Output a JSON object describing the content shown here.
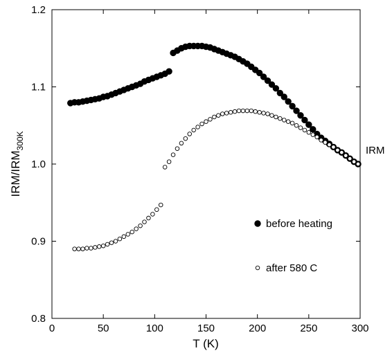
{
  "chart_data": {
    "type": "scatter",
    "title": "",
    "xlabel": "T (K)",
    "ylabel": {
      "main": "IRM/IRM",
      "sub": "300K"
    },
    "xlim": [
      0,
      300
    ],
    "ylim": [
      0.8,
      1.2
    ],
    "xticks": [
      0,
      50,
      100,
      150,
      200,
      250,
      300
    ],
    "yticks": [
      0.8,
      0.9,
      1.0,
      1.1,
      1.2
    ],
    "xtick_labels": [
      "0",
      "50",
      "100",
      "150",
      "200",
      "250",
      "300"
    ],
    "ytick_labels": [
      "0.8",
      "0.9",
      "1.0",
      "1.1",
      "1.2"
    ],
    "grid": false,
    "annotation": "IRM",
    "series": [
      {
        "name": "before heating",
        "marker": "filled-circle",
        "color": "#000000",
        "points": [
          [
            18,
            1.079
          ],
          [
            22,
            1.08
          ],
          [
            26,
            1.08
          ],
          [
            30,
            1.081
          ],
          [
            34,
            1.082
          ],
          [
            38,
            1.083
          ],
          [
            42,
            1.084
          ],
          [
            46,
            1.085
          ],
          [
            50,
            1.087
          ],
          [
            54,
            1.088
          ],
          [
            58,
            1.09
          ],
          [
            62,
            1.092
          ],
          [
            66,
            1.094
          ],
          [
            70,
            1.096
          ],
          [
            74,
            1.098
          ],
          [
            78,
            1.1
          ],
          [
            82,
            1.102
          ],
          [
            86,
            1.104
          ],
          [
            90,
            1.107
          ],
          [
            94,
            1.109
          ],
          [
            98,
            1.111
          ],
          [
            102,
            1.113
          ],
          [
            106,
            1.115
          ],
          [
            110,
            1.117
          ],
          [
            114,
            1.12
          ],
          [
            118,
            1.144
          ],
          [
            122,
            1.147
          ],
          [
            126,
            1.15
          ],
          [
            130,
            1.152
          ],
          [
            134,
            1.153
          ],
          [
            138,
            1.153
          ],
          [
            142,
            1.153
          ],
          [
            146,
            1.153
          ],
          [
            150,
            1.152
          ],
          [
            154,
            1.151
          ],
          [
            158,
            1.149
          ],
          [
            162,
            1.147
          ],
          [
            166,
            1.145
          ],
          [
            170,
            1.143
          ],
          [
            174,
            1.141
          ],
          [
            178,
            1.139
          ],
          [
            182,
            1.136
          ],
          [
            186,
            1.133
          ],
          [
            190,
            1.13
          ],
          [
            194,
            1.126
          ],
          [
            198,
            1.122
          ],
          [
            202,
            1.118
          ],
          [
            206,
            1.113
          ],
          [
            210,
            1.108
          ],
          [
            214,
            1.103
          ],
          [
            218,
            1.098
          ],
          [
            222,
            1.092
          ],
          [
            226,
            1.087
          ],
          [
            230,
            1.081
          ],
          [
            234,
            1.075
          ],
          [
            238,
            1.069
          ],
          [
            242,
            1.063
          ],
          [
            246,
            1.057
          ],
          [
            250,
            1.051
          ],
          [
            254,
            1.045
          ],
          [
            258,
            1.039
          ],
          [
            262,
            1.034
          ],
          [
            266,
            1.03
          ],
          [
            270,
            1.026
          ],
          [
            274,
            1.022
          ],
          [
            278,
            1.018
          ],
          [
            282,
            1.015
          ],
          [
            286,
            1.011
          ],
          [
            290,
            1.007
          ],
          [
            294,
            1.003
          ],
          [
            298,
            1.0
          ]
        ]
      },
      {
        "name": "after 580 C",
        "marker": "open-circle",
        "color": "#000000",
        "points": [
          [
            22,
            0.89
          ],
          [
            26,
            0.89
          ],
          [
            30,
            0.89
          ],
          [
            34,
            0.891
          ],
          [
            38,
            0.891
          ],
          [
            42,
            0.892
          ],
          [
            46,
            0.893
          ],
          [
            50,
            0.894
          ],
          [
            54,
            0.896
          ],
          [
            58,
            0.898
          ],
          [
            62,
            0.9
          ],
          [
            66,
            0.903
          ],
          [
            70,
            0.906
          ],
          [
            74,
            0.909
          ],
          [
            78,
            0.912
          ],
          [
            82,
            0.916
          ],
          [
            86,
            0.92
          ],
          [
            90,
            0.925
          ],
          [
            94,
            0.93
          ],
          [
            98,
            0.935
          ],
          [
            102,
            0.941
          ],
          [
            106,
            0.947
          ],
          [
            110,
            0.996
          ],
          [
            114,
            1.003
          ],
          [
            118,
            1.012
          ],
          [
            122,
            1.02
          ],
          [
            126,
            1.027
          ],
          [
            130,
            1.033
          ],
          [
            134,
            1.039
          ],
          [
            138,
            1.044
          ],
          [
            142,
            1.048
          ],
          [
            146,
            1.052
          ],
          [
            150,
            1.055
          ],
          [
            154,
            1.058
          ],
          [
            158,
            1.061
          ],
          [
            162,
            1.063
          ],
          [
            166,
            1.065
          ],
          [
            170,
            1.066
          ],
          [
            174,
            1.067
          ],
          [
            178,
            1.068
          ],
          [
            182,
            1.069
          ],
          [
            186,
            1.069
          ],
          [
            190,
            1.069
          ],
          [
            194,
            1.069
          ],
          [
            198,
            1.068
          ],
          [
            202,
            1.067
          ],
          [
            206,
            1.066
          ],
          [
            210,
            1.065
          ],
          [
            214,
            1.063
          ],
          [
            218,
            1.061
          ],
          [
            222,
            1.059
          ],
          [
            226,
            1.057
          ],
          [
            230,
            1.055
          ],
          [
            234,
            1.053
          ],
          [
            238,
            1.05
          ],
          [
            242,
            1.047
          ],
          [
            246,
            1.044
          ],
          [
            250,
            1.041
          ],
          [
            254,
            1.038
          ],
          [
            258,
            1.035
          ],
          [
            262,
            1.031
          ],
          [
            266,
            1.028
          ],
          [
            270,
            1.025
          ],
          [
            274,
            1.022
          ],
          [
            278,
            1.018
          ],
          [
            282,
            1.015
          ],
          [
            286,
            1.011
          ],
          [
            290,
            1.007
          ],
          [
            294,
            1.003
          ],
          [
            298,
            1.0
          ]
        ]
      }
    ],
    "legend": {
      "placement": "lower-right",
      "entries": [
        "before heating",
        "after 580 C"
      ]
    }
  }
}
